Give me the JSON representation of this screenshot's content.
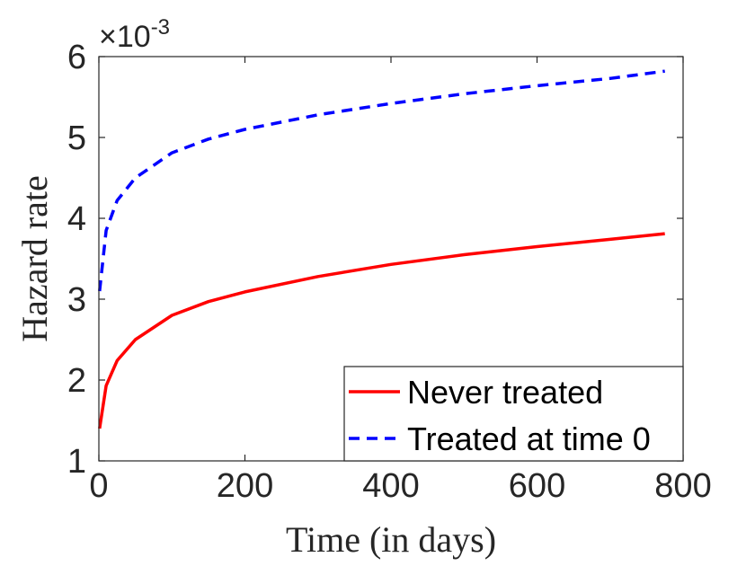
{
  "chart_data": {
    "type": "line",
    "title": "",
    "xlabel": "Time (in days)",
    "ylabel": "Hazard rate",
    "xlim": [
      0,
      800
    ],
    "ylim": [
      1,
      6
    ],
    "xticks": [
      "0",
      "200",
      "400",
      "600",
      "800"
    ],
    "yticks": [
      "1",
      "2",
      "3",
      "4",
      "5",
      "6"
    ],
    "y_multiplier_base": "×10",
    "y_multiplier_exp": "-3",
    "grid": false,
    "legend_position": "bottom-right",
    "x": [
      1,
      10,
      25,
      50,
      100,
      150,
      200,
      300,
      400,
      500,
      600,
      700,
      775
    ],
    "series": [
      {
        "name": "Never treated",
        "color": "#ff0000",
        "style": "solid",
        "values": [
          1.4,
          1.93,
          2.24,
          2.5,
          2.8,
          2.97,
          3.09,
          3.28,
          3.43,
          3.55,
          3.65,
          3.74,
          3.81
        ]
      },
      {
        "name": "Treated at time 0",
        "color": "#0000ff",
        "style": "dashed",
        "values": [
          3.1,
          3.85,
          4.22,
          4.5,
          4.81,
          4.98,
          5.1,
          5.28,
          5.42,
          5.54,
          5.64,
          5.73,
          5.82
        ]
      }
    ]
  }
}
